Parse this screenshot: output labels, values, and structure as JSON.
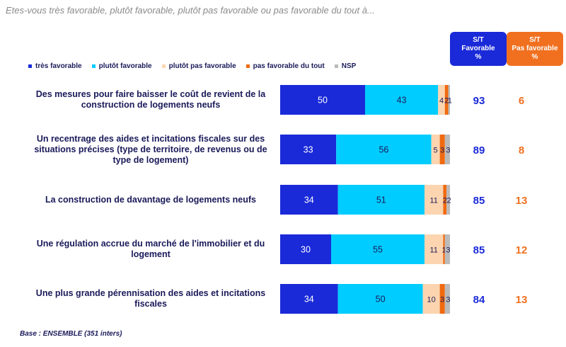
{
  "question": "Etes-vous très favorable, plutôt favorable, plutôt pas favorable ou pas favorable du tout à...",
  "base": "Base : ENSEMBLE (351 inters)",
  "summary_boxes": {
    "favorable": {
      "line1": "S/T",
      "line2": "Favorable",
      "line3": "%"
    },
    "unfavorable": {
      "line1": "S/T",
      "line2": "Pas favorable",
      "line3": "%"
    }
  },
  "colors": {
    "tres_favorable": "#1a2ad8",
    "plutot_favorable": "#00ccff",
    "plutot_pas_favorable": "#fcd5b0",
    "pas_favorable": "#f06a10",
    "nsp": "#bbbbbb",
    "total_fav": "#1a2ad8",
    "total_unfav": "#f07020"
  },
  "chart_data": {
    "type": "bar",
    "orientation": "horizontal-stacked",
    "title": "Etes-vous très favorable, plutôt favorable, plutôt pas favorable ou pas favorable du tout à...",
    "xlim": [
      0,
      100
    ],
    "unit": "%",
    "legend_position": "top",
    "categories": [
      "Des mesures pour faire baisser le coût de revient de la construction de logements neufs",
      "Un recentrage des aides et incitations fiscales sur des situations précises (type de territoire, de revenus ou de type de logement)",
      "La construction de davantage de logements neufs",
      "Une régulation accrue du marché de l'immobilier et du logement",
      "Une plus grande pérennisation des aides et incitations fiscales"
    ],
    "series": [
      {
        "name": "très favorable",
        "key": "tres_favorable",
        "values": [
          50,
          33,
          34,
          30,
          34
        ]
      },
      {
        "name": "plutôt favorable",
        "key": "plutot_favorable",
        "values": [
          43,
          56,
          51,
          55,
          50
        ]
      },
      {
        "name": "plutôt pas favorable",
        "key": "plutot_pas_favorable",
        "values": [
          4,
          5,
          11,
          11,
          10
        ]
      },
      {
        "name": "pas favorable du tout",
        "key": "pas_favorable",
        "values": [
          2,
          3,
          2,
          1,
          3
        ]
      },
      {
        "name": "NSP",
        "key": "nsp",
        "values": [
          1,
          3,
          2,
          3,
          3
        ]
      }
    ],
    "totals": {
      "favorable": [
        93,
        89,
        85,
        85,
        84
      ],
      "unfavorable": [
        6,
        8,
        13,
        12,
        13
      ]
    }
  }
}
